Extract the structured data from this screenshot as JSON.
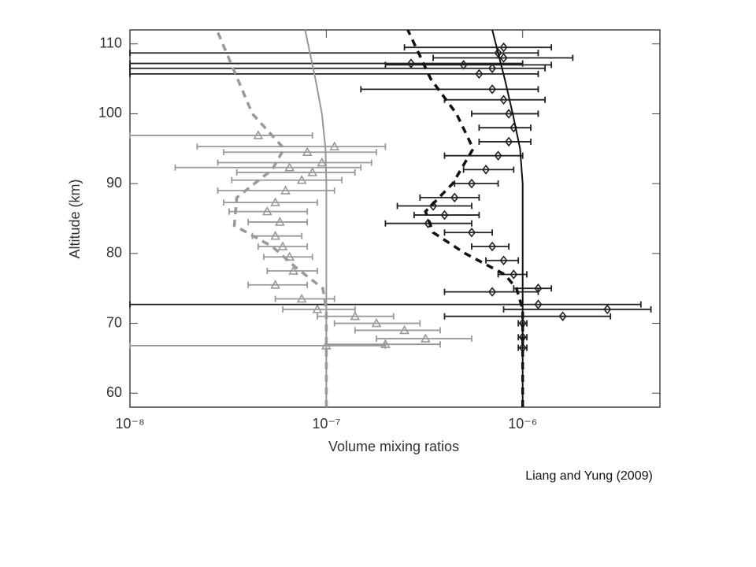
{
  "chart_data": {
    "type": "scatter",
    "xlabel": "Volume mixing ratios",
    "ylabel": "Altitude  (km)",
    "xscale": "log",
    "xlim": [
      1e-08,
      5e-06
    ],
    "ylim": [
      58,
      112
    ],
    "xticks": [
      {
        "value": 1e-08,
        "label": "10⁻⁸"
      },
      {
        "value": 1e-07,
        "label": "10⁻⁷"
      },
      {
        "value": 1e-06,
        "label": "10⁻⁶"
      }
    ],
    "yticks": [
      60,
      70,
      80,
      90,
      100,
      110
    ],
    "series": [
      {
        "color": "#999999",
        "marker": "triangle",
        "x": [
          4.5e-08,
          1.1e-07,
          8e-08,
          9.5e-08,
          6.5e-08,
          8.5e-08,
          7.5e-08,
          6.2e-08,
          5.5e-08,
          5e-08,
          5.8e-08,
          5.5e-08,
          6e-08,
          6.5e-08,
          6.8e-08,
          5.5e-08,
          7.5e-08,
          9e-08,
          1.4e-07,
          1.8e-07,
          2.5e-07,
          3.2e-07,
          2e-07,
          1e-07
        ],
        "y": [
          96.9,
          95.3,
          94.5,
          93,
          92.3,
          91.6,
          90.5,
          89,
          87.3,
          86,
          84.5,
          82.5,
          81,
          79.5,
          77.5,
          75.5,
          73.5,
          72,
          71,
          70,
          69,
          67.8,
          67,
          66.8
        ],
        "x_low": [
          1e-08,
          2.2e-08,
          3e-08,
          2.8e-08,
          1.7e-08,
          3.5e-08,
          3.3e-08,
          2.8e-08,
          3e-08,
          3.2e-08,
          4e-08,
          4.2e-08,
          4.5e-08,
          4.8e-08,
          5e-08,
          4e-08,
          5.5e-08,
          6e-08,
          9e-08,
          1.1e-07,
          1.4e-07,
          1.8e-07,
          1e-07,
          1e-08
        ],
        "x_high": [
          8.5e-08,
          2e-07,
          1.8e-07,
          1.7e-07,
          1.5e-07,
          1.4e-07,
          1.2e-07,
          1.1e-07,
          9e-08,
          8e-08,
          8e-08,
          7.5e-08,
          8e-08,
          8.5e-08,
          9e-08,
          8e-08,
          1.1e-07,
          1.4e-07,
          2.2e-07,
          3e-07,
          3.8e-07,
          5.5e-07,
          3.8e-07,
          2e-07
        ]
      },
      {
        "color": "#222222",
        "marker": "diamond",
        "x": [
          8e-07,
          7.5e-07,
          8e-07,
          2.7e-07,
          5e-07,
          7e-07,
          6e-07,
          7e-07,
          8e-07,
          8.5e-07,
          9e-07,
          8.5e-07,
          7.5e-07,
          6.5e-07,
          5.5e-07,
          4.5e-07,
          3.5e-07,
          4e-07,
          3.3e-07,
          5.5e-07,
          7e-07,
          8e-07,
          9e-07,
          1.2e-06,
          7e-07,
          1.2e-06,
          2.7e-06,
          1.6e-06,
          1e-06,
          1e-06,
          1e-06
        ],
        "y": [
          109.5,
          108.7,
          108,
          107.2,
          107,
          106.5,
          105.7,
          103.5,
          102,
          100,
          98,
          96,
          94,
          92,
          90,
          88,
          86.8,
          85.5,
          84.3,
          83,
          81,
          79,
          77,
          75,
          74.5,
          72.7,
          72,
          71,
          70,
          68,
          66.5
        ],
        "x_low": [
          2.5e-07,
          1e-08,
          3.5e-07,
          1e-08,
          2e-07,
          1e-08,
          1e-08,
          1.5e-07,
          4e-07,
          5.5e-07,
          6e-07,
          6e-07,
          4e-07,
          5e-07,
          4.5e-07,
          3e-07,
          2.3e-07,
          2.8e-07,
          2e-07,
          4e-07,
          5.5e-07,
          6.5e-07,
          7.5e-07,
          9e-07,
          4e-07,
          1e-08,
          8e-07,
          4e-07,
          9.5e-07,
          9.5e-07,
          9.5e-07
        ],
        "x_high": [
          1.4e-06,
          1.2e-06,
          1.8e-06,
          1e-06,
          1.4e-06,
          1.3e-06,
          1.2e-06,
          1.2e-06,
          1.3e-06,
          1.2e-06,
          1.1e-06,
          1.1e-06,
          1e-06,
          9e-07,
          7.5e-07,
          6e-07,
          5.5e-07,
          6e-07,
          5.5e-07,
          7e-07,
          8.5e-07,
          9.5e-07,
          1.05e-06,
          1.4e-06,
          1.2e-06,
          4e-06,
          4.5e-06,
          2.8e-06,
          1.05e-06,
          1.05e-06,
          1.05e-06
        ]
      },
      {
        "color": "#999999",
        "dash": false,
        "x": [
          1e-07,
          1e-07,
          1e-07,
          1e-07,
          1e-07,
          9.9e-08,
          9.5e-08,
          8.8e-08,
          7.8e-08
        ],
        "y": [
          58,
          65,
          75,
          85,
          90,
          95,
          100,
          105,
          112
        ]
      },
      {
        "color": "#999999",
        "dash": true,
        "x": [
          1e-07,
          1e-07,
          9.6e-08,
          7e-08,
          5.3e-08,
          3.4e-08,
          3.5e-08,
          5.3e-08,
          6.1e-08,
          4.2e-08,
          2.77e-08
        ],
        "y": [
          58,
          72,
          75,
          78,
          81,
          84,
          88,
          92,
          95,
          100,
          112
        ]
      },
      {
        "color": "#111111",
        "dash": false,
        "x": [
          1e-06,
          1e-06,
          1e-06,
          9.7e-07,
          8.9e-07,
          8.1e-07,
          7e-07
        ],
        "y": [
          58,
          80,
          90,
          95,
          100,
          105,
          112
        ]
      },
      {
        "color": "#111111",
        "dash": true,
        "x": [
          1e-06,
          1e-06,
          9.3e-07,
          8.1e-07,
          5.1e-07,
          3.5e-07,
          3.2e-07,
          4.4e-07,
          5.6e-07,
          4.6e-07,
          3.4e-07,
          2.6e-07
        ],
        "y": [
          58,
          72,
          75,
          77,
          80,
          83,
          86,
          90,
          95,
          100,
          105,
          112
        ]
      }
    ]
  },
  "caption": "Liang and Yung (2009)"
}
